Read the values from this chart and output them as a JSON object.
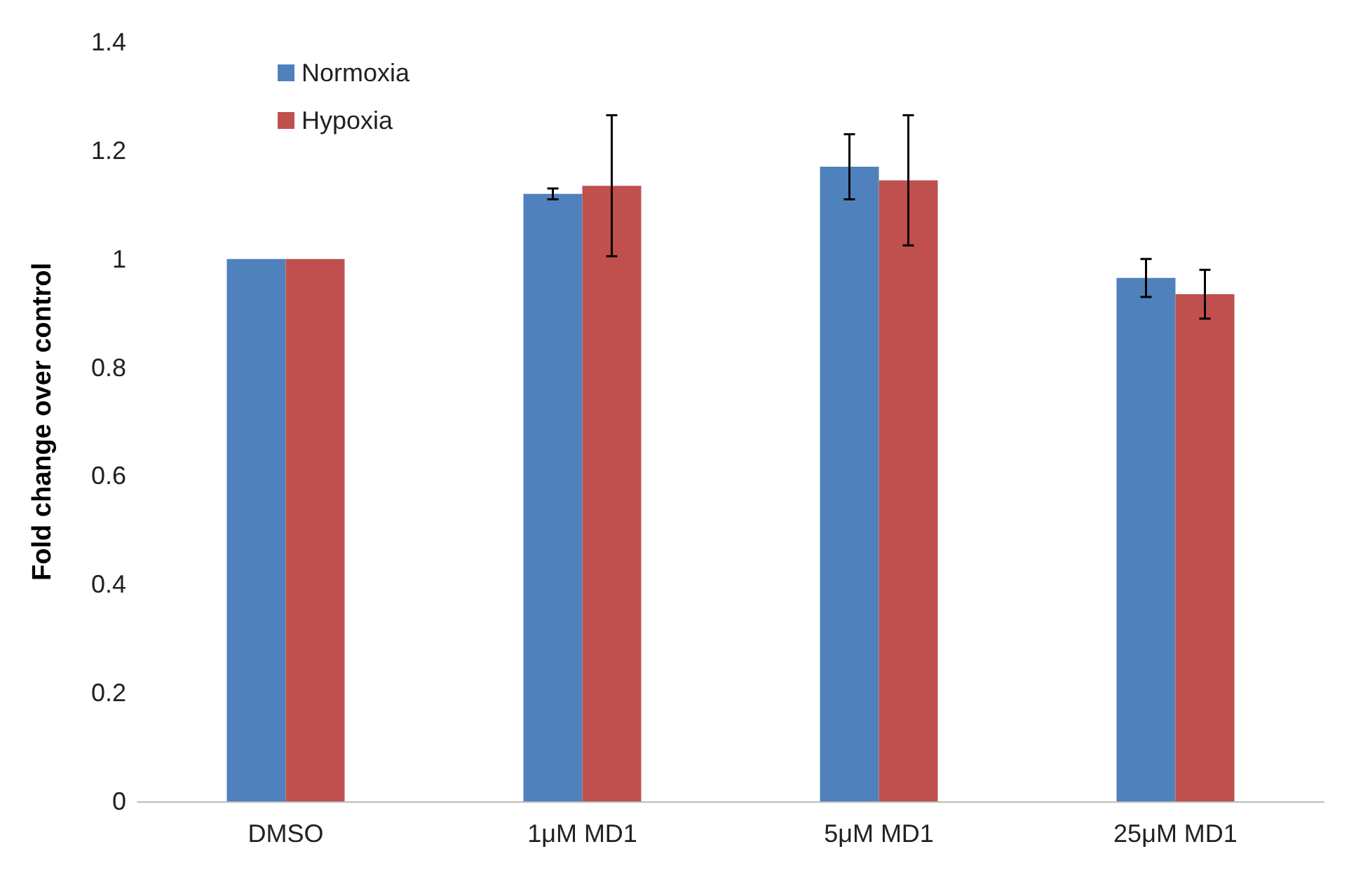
{
  "chart_data": {
    "type": "bar",
    "ylabel": "Fold change over control",
    "categories": [
      "DMSO",
      "1μM MD1",
      "5μM MD1",
      "25μM MD1"
    ],
    "series": [
      {
        "name": "Normoxia",
        "color": "#4f81bd",
        "values": [
          1,
          1.12,
          1.17,
          0.965
        ],
        "errors": [
          null,
          0.01,
          0.06,
          0.035
        ]
      },
      {
        "name": "Hypoxia",
        "color": "#c0504d",
        "values": [
          1,
          1.135,
          1.145,
          0.935
        ],
        "errors": [
          null,
          0.13,
          0.12,
          0.045
        ]
      }
    ],
    "ylim": [
      0,
      1.4
    ],
    "yticks": [
      0,
      0.2,
      0.4,
      0.6,
      0.8,
      1,
      1.2,
      1.4
    ],
    "grid": false,
    "legend": "top left"
  }
}
